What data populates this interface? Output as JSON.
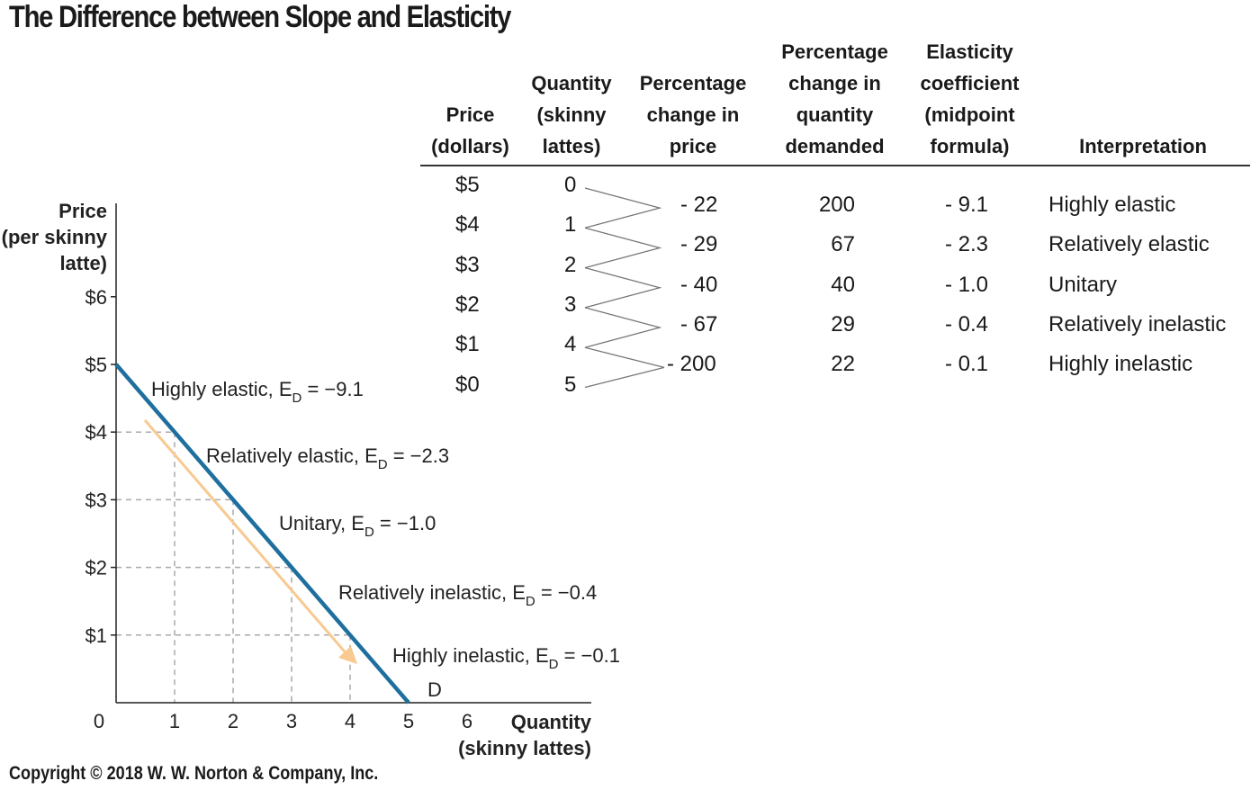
{
  "title": "The Difference between Slope and Elasticity",
  "copyright": "Copyright © 2018 W. W. Norton & Company, Inc.",
  "table": {
    "headers": {
      "price": "Price\n(dollars)",
      "quantity": "Quantity\n(skinny\nlattes)",
      "pct_price": "Percentage\nchange in\nprice",
      "pct_qty": "Percentage\nchange in\nquantity\ndemanded",
      "elasticity": "Elasticity\ncoefficient\n(midpoint\nformula)",
      "interpretation": "Interpretation"
    },
    "prices": [
      "$5",
      "$4",
      "$3",
      "$2",
      "$1",
      "$0"
    ],
    "quantities": [
      "0",
      "1",
      "2",
      "3",
      "4",
      "5"
    ],
    "rows": [
      {
        "pct_price": "- 22",
        "pct_qty": "200",
        "elasticity": "- 9.1",
        "interpretation": "Highly elastic"
      },
      {
        "pct_price": "- 29",
        "pct_qty": "67",
        "elasticity": "- 2.3",
        "interpretation": "Relatively elastic"
      },
      {
        "pct_price": "- 40",
        "pct_qty": "40",
        "elasticity": "- 1.0",
        "interpretation": "Unitary"
      },
      {
        "pct_price": "- 67",
        "pct_qty": "29",
        "elasticity": "- 0.4",
        "interpretation": "Relatively inelastic"
      },
      {
        "pct_price": "- 200",
        "pct_qty": "22",
        "elasticity": "- 0.1",
        "interpretation": "Highly inelastic"
      }
    ]
  },
  "chart_data": {
    "type": "line",
    "ylabel": "Price\n(per skinny\nlatte)",
    "xlabel": "Quantity\n(skinny lattes)",
    "xlim": [
      0,
      6
    ],
    "ylim": [
      0,
      6
    ],
    "x_ticks": [
      "0",
      "1",
      "2",
      "3",
      "4",
      "5",
      "6"
    ],
    "y_ticks": [
      "$1",
      "$2",
      "$3",
      "$4",
      "$5",
      "$6"
    ],
    "series": [
      {
        "name": "D",
        "x": [
          0,
          1,
          2,
          3,
          4,
          5
        ],
        "y": [
          5,
          4,
          3,
          2,
          1,
          0
        ],
        "color": "#1f6f9e"
      }
    ],
    "annotations": [
      {
        "text": "Highly elastic, E",
        "sub": "D",
        "value": " = −9.1"
      },
      {
        "text": "Relatively elastic, E",
        "sub": "D",
        "value": " = −2.3"
      },
      {
        "text": "Unitary, E",
        "sub": "D",
        "value": " = −1.0"
      },
      {
        "text": "Relatively inelastic, E",
        "sub": "D",
        "value": " = −0.4"
      },
      {
        "text": "Highly inelastic, E",
        "sub": "D",
        "value": " = −0.1"
      }
    ],
    "arrow_color": "#f8c990",
    "gridlines": "dashed at integer points on curve"
  }
}
